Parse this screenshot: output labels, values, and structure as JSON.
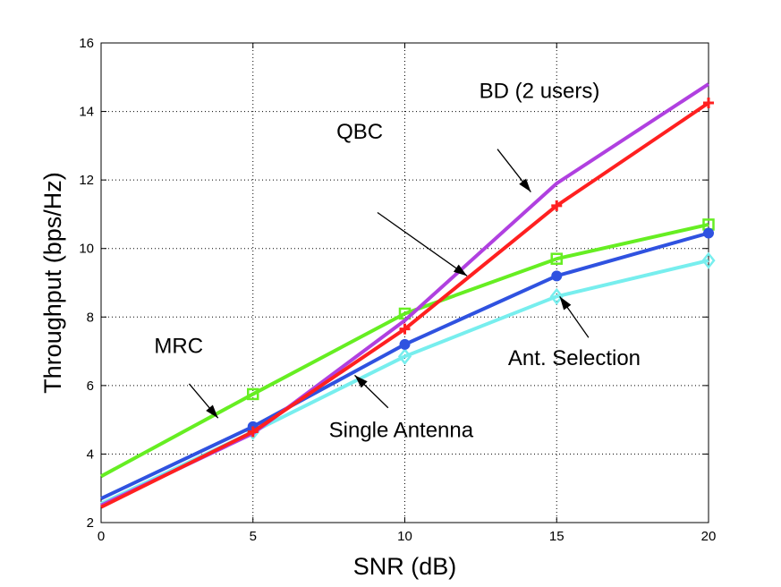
{
  "chart_data": {
    "type": "line",
    "xlabel": "SNR (dB)",
    "ylabel": "Throughput (bps/Hz)",
    "xlim": [
      0,
      20
    ],
    "ylim": [
      2,
      16
    ],
    "xticks": [
      0,
      5,
      10,
      15,
      20
    ],
    "yticks": [
      2,
      4,
      6,
      8,
      10,
      12,
      14,
      16
    ],
    "grid": true,
    "x": [
      0,
      5,
      10,
      15,
      20
    ],
    "series": [
      {
        "name": "MRC",
        "color": "#66ee22",
        "marker": "square",
        "values": [
          3.35,
          5.75,
          8.1,
          9.7,
          10.7
        ]
      },
      {
        "name": "Single Antenna",
        "color": "#77eeee",
        "marker": "diamond",
        "values": [
          2.55,
          4.65,
          6.85,
          8.6,
          9.65
        ]
      },
      {
        "name": "Ant. Selection",
        "color": "#2f52e0",
        "marker": "circle",
        "values": [
          2.7,
          4.8,
          7.2,
          9.2,
          10.45
        ]
      },
      {
        "name": "BD (2 users)",
        "color": "#b040e0",
        "marker": "none",
        "values": [
          2.5,
          4.6,
          7.9,
          11.9,
          14.8
        ]
      },
      {
        "name": "QBC",
        "color": "#ff2020",
        "marker": "plus",
        "values": [
          2.45,
          4.65,
          7.65,
          11.25,
          14.25
        ]
      }
    ],
    "annotations": [
      {
        "text": "BD (2 users)",
        "x": 12.45,
        "y": 14.4,
        "arrow_to": [
          14.15,
          11.65
        ],
        "arrow_from": [
          13.05,
          12.9
        ]
      },
      {
        "text": "QBC",
        "x": 7.75,
        "y": 13.2,
        "arrow_to": [
          12.05,
          9.2
        ],
        "arrow_from": [
          9.1,
          11.05
        ]
      },
      {
        "text": "MRC",
        "x": 1.75,
        "y": 6.95,
        "arrow_to": [
          3.85,
          5.05
        ],
        "arrow_from": [
          2.9,
          6.05
        ]
      },
      {
        "text": "Single Antenna",
        "x": 7.5,
        "y": 4.5,
        "arrow_to": [
          8.35,
          6.3
        ],
        "arrow_from": [
          9.45,
          5.35
        ]
      },
      {
        "text": "Ant. Selection",
        "x": 13.4,
        "y": 6.6,
        "arrow_to": [
          15.1,
          8.6
        ],
        "arrow_from": [
          16.05,
          7.4
        ]
      }
    ]
  }
}
